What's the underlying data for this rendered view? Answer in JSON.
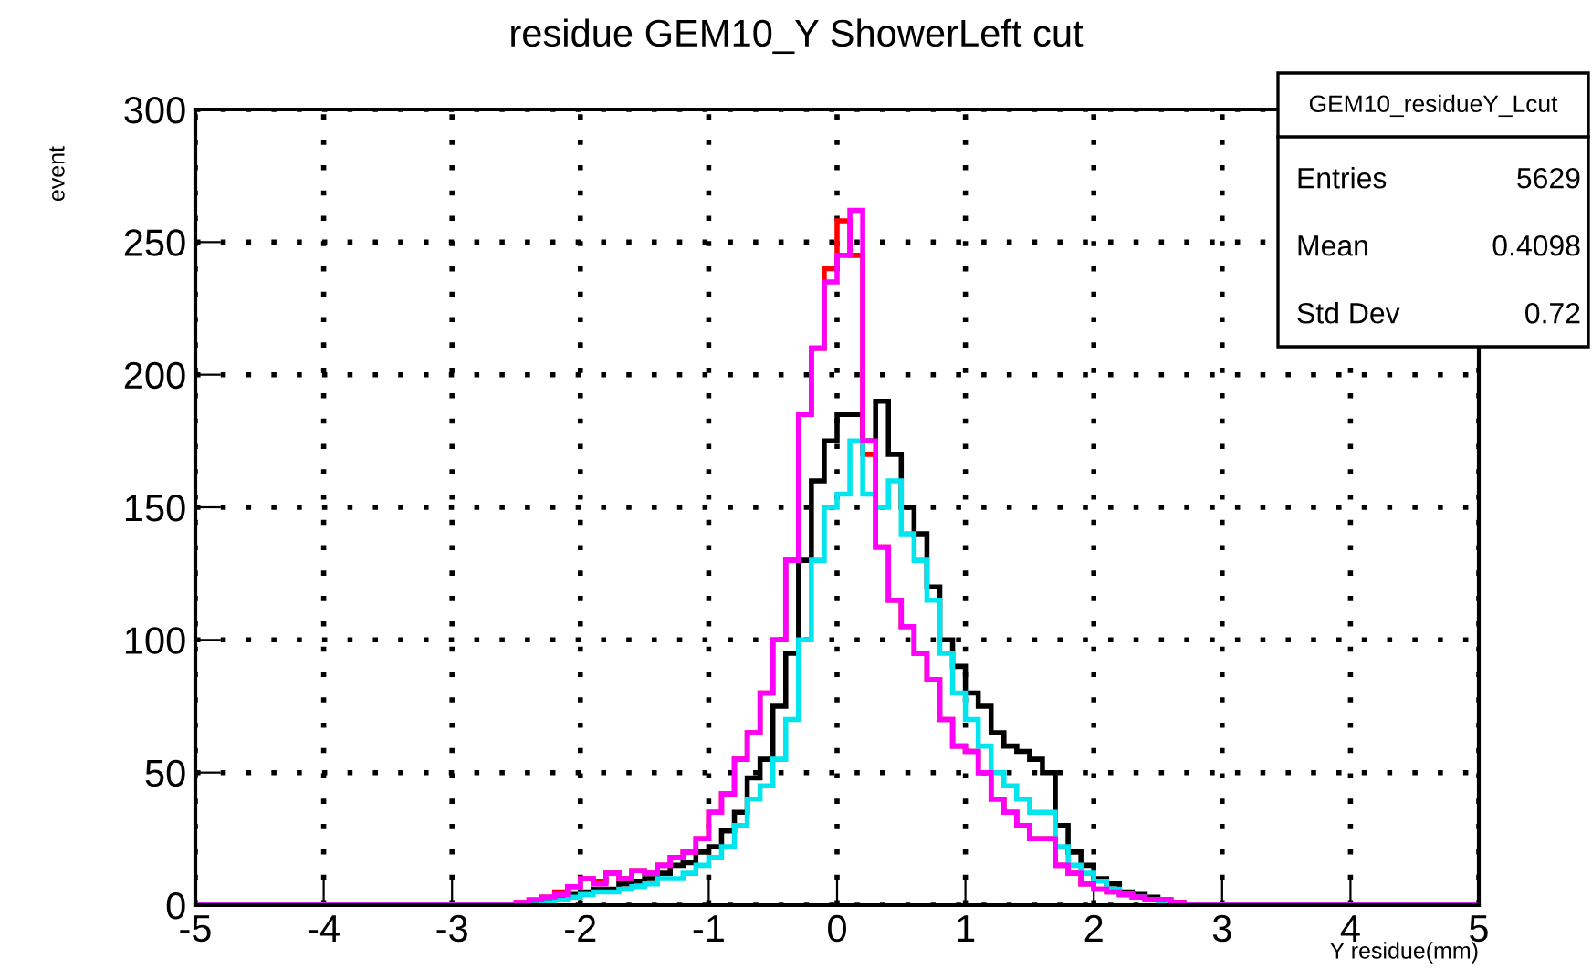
{
  "chart_data": {
    "type": "histogram",
    "title": "residue GEM10_Y ShowerLeft cut",
    "xlabel": "Y residue(mm)",
    "ylabel": "event",
    "bins": [
      -5,
      -2.5,
      -2.4,
      -2.3,
      -2.2,
      -2.1,
      -2.0,
      -1.9,
      -1.8,
      -1.7,
      -1.6,
      -1.5,
      -1.4,
      -1.3,
      -1.2,
      -1.1,
      -1.0,
      -0.9,
      -0.8,
      -0.7,
      -0.6,
      -0.5,
      -0.4,
      -0.3,
      -0.2,
      -0.1,
      0.0,
      0.1,
      0.2,
      0.3,
      0.4,
      0.5,
      0.6,
      0.7,
      0.8,
      0.9,
      1.0,
      1.1,
      1.2,
      1.3,
      1.4,
      1.5,
      1.6,
      1.7,
      1.8,
      1.9,
      2.0,
      2.1,
      2.2,
      2.3,
      2.4,
      2.5,
      2.6,
      2.7,
      2.8,
      5
    ],
    "series": [
      {
        "color": "#000000",
        "values": [
          0,
          0,
          1,
          2,
          3,
          4,
          5,
          6,
          6,
          8,
          9,
          10,
          12,
          15,
          16,
          20,
          22,
          28,
          35,
          48,
          55,
          75,
          95,
          130,
          160,
          175,
          185,
          185,
          175,
          190,
          170,
          150,
          140,
          120,
          100,
          90,
          80,
          75,
          65,
          60,
          58,
          55,
          50,
          30,
          20,
          15,
          10,
          8,
          5,
          4,
          3,
          2,
          1,
          0,
          0
        ]
      },
      {
        "color": "#ff0000",
        "values": [
          0,
          1,
          2,
          3,
          5,
          7,
          10,
          9,
          12,
          10,
          13,
          12,
          15,
          18,
          20,
          25,
          35,
          42,
          55,
          65,
          80,
          100,
          130,
          185,
          210,
          240,
          258,
          245,
          170,
          135,
          115,
          105,
          95,
          85,
          70,
          60,
          58,
          50,
          40,
          35,
          30,
          25,
          25,
          15,
          12,
          8,
          6,
          5,
          4,
          3,
          2,
          2,
          1,
          0,
          0
        ]
      },
      {
        "color": "#00e5ee",
        "values": [
          0,
          0,
          0,
          1,
          2,
          3,
          4,
          5,
          5,
          6,
          7,
          8,
          10,
          10,
          12,
          15,
          18,
          22,
          30,
          40,
          45,
          55,
          70,
          100,
          130,
          150,
          155,
          175,
          155,
          150,
          160,
          140,
          130,
          115,
          95,
          80,
          70,
          60,
          50,
          45,
          40,
          35,
          35,
          22,
          15,
          12,
          9,
          6,
          4,
          3,
          2,
          1,
          0,
          0,
          0
        ]
      },
      {
        "color": "#ff00ff",
        "values": [
          0,
          1,
          2,
          3,
          4,
          7,
          10,
          8,
          12,
          10,
          13,
          12,
          15,
          18,
          20,
          25,
          35,
          42,
          55,
          65,
          80,
          100,
          130,
          185,
          210,
          235,
          245,
          262,
          175,
          135,
          115,
          105,
          95,
          85,
          70,
          60,
          58,
          50,
          40,
          35,
          30,
          25,
          25,
          15,
          12,
          8,
          6,
          5,
          4,
          3,
          2,
          2,
          1,
          0,
          0
        ]
      }
    ],
    "xlim": [
      -5,
      5
    ],
    "xticks": [
      -5,
      -4,
      -3,
      -2,
      -1,
      0,
      1,
      2,
      3,
      4,
      5
    ],
    "ylim": [
      0,
      300
    ],
    "yticks": [
      0,
      50,
      100,
      150,
      200,
      250,
      300
    ],
    "grid": true,
    "legend": false,
    "annotations": [
      "GEM10_residueY_Lcut",
      "Entries",
      "5629",
      "Mean",
      "0.4098",
      "Std Dev",
      "0.72"
    ]
  }
}
